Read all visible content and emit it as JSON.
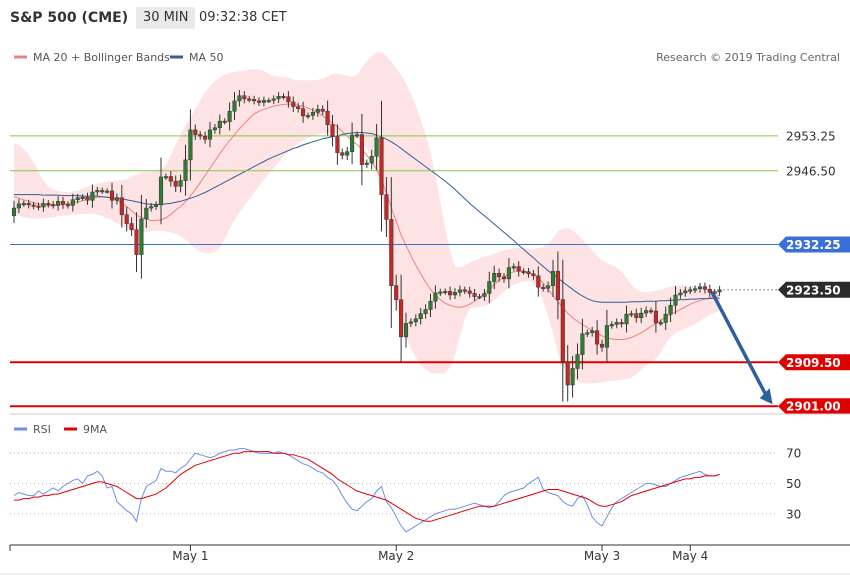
{
  "header": {
    "title": "S&P 500 (CME)",
    "interval": "30 MIN",
    "time": "09:32:38 CET"
  },
  "colors": {
    "bollinger_fill": "#fde3e3",
    "ma20": "#f08080",
    "ma50": "#2f5f9a",
    "support": "#e00000",
    "resistance": "#8bc34a",
    "current_line": "#3a6fd8",
    "candle_up": "#2e7d32",
    "candle_down": "#c62828",
    "arrow": "#2d5f9e",
    "rsi": "#6b8ee6",
    "rsi_ma": "#e00000"
  },
  "chart_data": [
    {
      "type": "candlestick",
      "legend": [
        {
          "name": "MA 20 + Bollinger Bands",
          "color": "#f08080"
        },
        {
          "name": "MA 50",
          "color": "#2f5f9a"
        }
      ],
      "credit": "Research © 2019 Trading Central",
      "ylim": [
        2899.5,
        2971
      ],
      "x_labels": [
        {
          "label": "May 1",
          "index": 36
        },
        {
          "label": "May 2",
          "index": 78
        },
        {
          "label": "May 3",
          "index": 120
        },
        {
          "label": "May 4",
          "index": 138
        }
      ],
      "levels": [
        {
          "value": 2953.25,
          "label": "2953.25",
          "kind": "resistance"
        },
        {
          "value": 2946.5,
          "label": "2946.50",
          "kind": "resistance"
        },
        {
          "value": 2932.25,
          "label": "2932.25",
          "kind": "current"
        },
        {
          "value": 2923.5,
          "label": "2923.50",
          "kind": "last"
        },
        {
          "value": 2909.5,
          "label": "2909.50",
          "kind": "support"
        },
        {
          "value": 2901.0,
          "label": "2901.00",
          "kind": "support"
        }
      ],
      "forecast_arrow": {
        "from": [
          142,
          2923.5
        ],
        "to": [
          154,
          2901.0
        ]
      },
      "close": [
        2939.3,
        2940.1,
        2940.2,
        2939.9,
        2939.7,
        2939.5,
        2940.2,
        2940.0,
        2939.8,
        2940.6,
        2940.0,
        2939.8,
        2940.9,
        2941.3,
        2941.4,
        2940.8,
        2942.4,
        2942.7,
        2942.6,
        2942.6,
        2940.8,
        2941.3,
        2938.0,
        2936.3,
        2935.1,
        2930.3,
        2937.2,
        2939.3,
        2939.6,
        2939.9,
        2945.3,
        2945.4,
        2944.5,
        2943.5,
        2944.6,
        2948.6,
        2954.4,
        2953.5,
        2953.2,
        2952.6,
        2954.4,
        2954.8,
        2956.1,
        2956.0,
        2958.0,
        2960.0,
        2961.0,
        2960.4,
        2960.3,
        2960.0,
        2959.7,
        2960.1,
        2960.1,
        2960.4,
        2960.9,
        2960.8,
        2959.8,
        2958.9,
        2958.5,
        2957.1,
        2957.2,
        2957.8,
        2958.4,
        2958.0,
        2955.4,
        2953.1,
        2950.0,
        2949.5,
        2950.2,
        2953.4,
        2953.5,
        2947.7,
        2948.0,
        2949.3,
        2952.9,
        2941.9,
        2937.1,
        2924.3,
        2921.6,
        2914.4,
        2917.0,
        2917.3,
        2917.9,
        2918.9,
        2919.7,
        2921.3,
        2922.9,
        2923.1,
        2923.2,
        2922.5,
        2923.0,
        2923.5,
        2923.3,
        2922.8,
        2922.2,
        2922.2,
        2922.8,
        2925.1,
        2926.7,
        2926.0,
        2925.6,
        2927.8,
        2928.0,
        2927.1,
        2927.0,
        2926.6,
        2926.2,
        2924.0,
        2923.8,
        2924.3,
        2927.1,
        2921.6,
        2909.6,
        2905.1,
        2908.3,
        2911.0,
        2915.0,
        2915.2,
        2915.6,
        2913.0,
        2912.4,
        2916.6,
        2916.8,
        2917.2,
        2916.9,
        2918.8,
        2918.9,
        2918.1,
        2919.0,
        2919.5,
        2919.4,
        2917.1,
        2917.2,
        2918.8,
        2920.5,
        2922.5,
        2922.9,
        2923.3,
        2923.5,
        2923.7,
        2924.1,
        2923.6,
        2923.0,
        2923.1,
        2923.5
      ],
      "open": [
        2937.8,
        2939.3,
        2940.1,
        2940.2,
        2939.9,
        2939.7,
        2939.5,
        2940.2,
        2940.0,
        2939.8,
        2940.6,
        2940.0,
        2939.8,
        2940.9,
        2941.3,
        2941.4,
        2940.8,
        2942.4,
        2942.7,
        2942.6,
        2942.6,
        2940.8,
        2941.3,
        2938.0,
        2936.3,
        2935.1,
        2930.3,
        2937.2,
        2939.3,
        2939.6,
        2939.9,
        2945.3,
        2945.4,
        2944.5,
        2943.5,
        2944.6,
        2948.6,
        2954.4,
        2953.5,
        2953.2,
        2952.6,
        2954.4,
        2954.8,
        2956.1,
        2956.0,
        2958.0,
        2960.0,
        2961.0,
        2960.4,
        2960.3,
        2960.0,
        2959.7,
        2960.1,
        2960.1,
        2960.4,
        2960.9,
        2960.8,
        2959.8,
        2958.9,
        2958.5,
        2957.1,
        2957.2,
        2957.8,
        2958.4,
        2958.0,
        2955.4,
        2953.1,
        2950.0,
        2949.5,
        2950.2,
        2953.4,
        2953.5,
        2947.7,
        2948.0,
        2949.3,
        2952.9,
        2941.9,
        2937.1,
        2924.3,
        2921.6,
        2914.4,
        2917.0,
        2917.3,
        2917.9,
        2918.9,
        2919.7,
        2921.3,
        2922.9,
        2923.1,
        2923.2,
        2922.5,
        2923.0,
        2923.5,
        2923.3,
        2922.8,
        2922.2,
        2922.2,
        2922.8,
        2925.1,
        2926.7,
        2926.0,
        2925.6,
        2927.8,
        2928.0,
        2927.1,
        2927.0,
        2926.6,
        2926.2,
        2924.0,
        2923.8,
        2924.3,
        2927.1,
        2921.6,
        2909.6,
        2905.1,
        2908.3,
        2911.0,
        2915.0,
        2915.2,
        2915.6,
        2913.0,
        2912.4,
        2916.6,
        2916.8,
        2917.2,
        2916.9,
        2918.8,
        2918.9,
        2918.1,
        2919.0,
        2919.5,
        2919.4,
        2917.1,
        2917.2,
        2918.8,
        2920.5,
        2922.5,
        2922.9,
        2923.3,
        2923.5,
        2923.7,
        2924.1,
        2923.6,
        2923.0,
        2923.1
      ],
      "ma20": [
        2941.5,
        2941.2,
        2940.9,
        2940.6,
        2940.3,
        2940.1,
        2939.9,
        2939.8,
        2939.8,
        2939.9,
        2940.0,
        2940.1,
        2940.3,
        2940.5,
        2940.7,
        2941.0,
        2941.2,
        2941.4,
        2941.5,
        2941.4,
        2941.1,
        2940.8,
        2940.3,
        2939.6,
        2938.8,
        2937.9,
        2937.5,
        2937.2,
        2936.9,
        2936.9,
        2937.0,
        2937.4,
        2938.1,
        2938.9,
        2939.6,
        2940.5,
        2941.6,
        2942.9,
        2944.2,
        2945.6,
        2947.0,
        2948.4,
        2949.8,
        2951.1,
        2952.3,
        2953.5,
        2954.6,
        2955.6,
        2956.6,
        2957.5,
        2958.0,
        2958.4,
        2958.7,
        2959.0,
        2959.2,
        2959.3,
        2959.4,
        2959.3,
        2959.2,
        2959.0,
        2958.6,
        2958.2,
        2957.7,
        2957.1,
        2956.4,
        2955.7,
        2955.0,
        2954.1,
        2953.2,
        2952.3,
        2951.6,
        2950.7,
        2949.5,
        2948.2,
        2946.8,
        2944.7,
        2942.2,
        2939.4,
        2936.7,
        2934.1,
        2932.1,
        2930.1,
        2928.3,
        2926.6,
        2925.0,
        2923.6,
        2922.5,
        2921.6,
        2920.9,
        2920.5,
        2920.2,
        2920.1,
        2920.3,
        2920.7,
        2921.3,
        2922.0,
        2922.8,
        2923.6,
        2924.5,
        2925.3,
        2926.0,
        2926.6,
        2927.0,
        2927.2,
        2927.1,
        2926.9,
        2926.4,
        2925.8,
        2924.8,
        2923.6,
        2922.4,
        2921.2,
        2920.0,
        2919.0,
        2918.1,
        2917.4,
        2916.8,
        2916.2,
        2915.6,
        2915.1,
        2914.6,
        2914.2,
        2914.0,
        2913.9,
        2913.9,
        2914.0,
        2914.3,
        2914.7,
        2915.2,
        2915.8,
        2916.4,
        2917.0,
        2917.6,
        2918.2,
        2918.7,
        2919.2,
        2919.7,
        2920.2,
        2920.7,
        2921.1,
        2921.4,
        2921.7,
        2922.0,
        2922.2,
        2922.4
      ],
      "bb_upper": [
        2951.8,
        2951.5,
        2950.7,
        2949.6,
        2948.1,
        2946.3,
        2944.6,
        2943.4,
        2942.9,
        2942.6,
        2942.4,
        2942.4,
        2942.5,
        2942.7,
        2943.1,
        2943.4,
        2943.7,
        2944.0,
        2944.2,
        2944.4,
        2944.5,
        2944.6,
        2944.7,
        2944.9,
        2945.3,
        2945.8,
        2946.2,
        2946.3,
        2946.3,
        2946.5,
        2946.9,
        2947.6,
        2949.4,
        2951.6,
        2953.5,
        2955.2,
        2956.9,
        2958.5,
        2960.1,
        2961.6,
        2962.8,
        2963.8,
        2964.6,
        2965.1,
        2965.4,
        2965.6,
        2965.7,
        2965.8,
        2966.0,
        2966.1,
        2966.1,
        2965.8,
        2965.2,
        2964.8,
        2964.7,
        2964.6,
        2964.5,
        2964.2,
        2964.0,
        2964.0,
        2964.0,
        2964.0,
        2964.1,
        2964.3,
        2964.7,
        2965.2,
        2965.3,
        2965.1,
        2964.9,
        2964.7,
        2965.0,
        2966.4,
        2967.7,
        2968.7,
        2969.4,
        2969.4,
        2968.7,
        2967.6,
        2966.3,
        2965.0,
        2963.4,
        2961.4,
        2959.0,
        2956.4,
        2953.5,
        2950.0,
        2945.6,
        2940.4,
        2935.5,
        2931.0,
        2928.0,
        2927.8,
        2928.2,
        2928.7,
        2929.2,
        2929.6,
        2929.9,
        2930.2,
        2930.5,
        2930.8,
        2931.1,
        2931.3,
        2931.5,
        2931.6,
        2931.6,
        2931.5,
        2931.4,
        2931.5,
        2931.8,
        2932.4,
        2933.5,
        2934.8,
        2935.4,
        2935.4,
        2934.9,
        2934.2,
        2933.3,
        2932.2,
        2931.1,
        2930.1,
        2929.2,
        2928.7,
        2928.3,
        2927.9,
        2927.0,
        2925.8,
        2924.5,
        2923.6,
        2923.1,
        2923.0,
        2923.1,
        2923.3,
        2923.5,
        2923.8,
        2924.1,
        2924.3,
        2924.4,
        2924.4,
        2924.3,
        2924.2,
        2924.1,
        2923.9,
        2923.7,
        2923.5,
        2923.3
      ],
      "bb_lower": [
        2938.4,
        2937.9,
        2937.5,
        2937.3,
        2937.2,
        2937.2,
        2937.3,
        2937.4,
        2937.5,
        2937.7,
        2937.8,
        2937.9,
        2938.0,
        2938.1,
        2938.2,
        2938.2,
        2938.2,
        2938.0,
        2937.7,
        2937.3,
        2936.9,
        2936.4,
        2935.9,
        2935.4,
        2935.0,
        2934.7,
        2934.6,
        2934.7,
        2934.8,
        2934.9,
        2934.9,
        2934.8,
        2934.6,
        2934.3,
        2933.9,
        2933.2,
        2932.3,
        2931.5,
        2930.9,
        2930.6,
        2930.5,
        2930.8,
        2931.7,
        2933.3,
        2935.2,
        2937.0,
        2938.5,
        2939.8,
        2941.0,
        2942.3,
        2943.6,
        2944.8,
        2945.9,
        2947.0,
        2948.1,
        2949.2,
        2950.2,
        2951.1,
        2951.8,
        2952.4,
        2952.9,
        2953.3,
        2953.5,
        2953.7,
        2953.8,
        2953.8,
        2953.6,
        2953.4,
        2953.1,
        2952.8,
        2952.6,
        2952.2,
        2950.9,
        2948.7,
        2945.8,
        2941.2,
        2934.6,
        2926.7,
        2920.4,
        2916.8,
        2914.4,
        2912.2,
        2910.4,
        2909.0,
        2908.1,
        2907.5,
        2907.3,
        2907.3,
        2907.5,
        2908.5,
        2910.9,
        2914.6,
        2917.9,
        2919.8,
        2920.2,
        2920.2,
        2920.3,
        2920.8,
        2921.5,
        2922.3,
        2923.2,
        2923.9,
        2924.5,
        2924.9,
        2925.1,
        2925.2,
        2924.8,
        2923.5,
        2921.3,
        2918.4,
        2914.9,
        2911.3,
        2908.7,
        2907.3,
        2906.4,
        2905.8,
        2905.5,
        2905.4,
        2905.4,
        2905.5,
        2905.6,
        2905.8,
        2905.9,
        2906.0,
        2906.1,
        2906.2,
        2906.5,
        2907.2,
        2908.1,
        2908.9,
        2909.5,
        2910.2,
        2911.4,
        2913.1,
        2914.3,
        2915.2,
        2915.7,
        2916.0,
        2916.4,
        2916.9,
        2917.5,
        2918.1,
        2918.6,
        2919.1,
        2919.5
      ],
      "ma50": [
        2941.9,
        2941.9,
        2941.9,
        2941.9,
        2941.9,
        2941.9,
        2941.8,
        2941.8,
        2941.8,
        2941.8,
        2941.7,
        2941.7,
        2941.7,
        2941.7,
        2941.6,
        2941.6,
        2941.6,
        2941.6,
        2941.5,
        2941.4,
        2941.3,
        2941.2,
        2941.1,
        2940.9,
        2940.7,
        2940.5,
        2940.3,
        2940.1,
        2940.0,
        2940.0,
        2940.0,
        2940.1,
        2940.2,
        2940.4,
        2940.6,
        2940.9,
        2941.2,
        2941.5,
        2941.9,
        2942.3,
        2942.8,
        2943.3,
        2943.8,
        2944.3,
        2944.8,
        2945.3,
        2945.8,
        2946.3,
        2946.8,
        2947.3,
        2947.8,
        2948.3,
        2948.8,
        2949.2,
        2949.6,
        2950.0,
        2950.4,
        2950.8,
        2951.1,
        2951.5,
        2951.8,
        2952.1,
        2952.4,
        2952.7,
        2952.9,
        2953.1,
        2953.3,
        2953.5,
        2953.7,
        2953.8,
        2953.9,
        2953.9,
        2953.8,
        2953.7,
        2953.4,
        2953.0,
        2952.6,
        2952.1,
        2951.5,
        2950.8,
        2950.1,
        2949.4,
        2948.7,
        2948.0,
        2947.3,
        2946.6,
        2945.9,
        2945.2,
        2944.5,
        2943.7,
        2942.9,
        2942.0,
        2941.1,
        2940.2,
        2939.4,
        2938.6,
        2937.8,
        2937.0,
        2936.2,
        2935.4,
        2934.6,
        2933.8,
        2933.0,
        2932.1,
        2931.3,
        2930.5,
        2929.7,
        2928.8,
        2928.0,
        2927.2,
        2926.5,
        2925.8,
        2925.0,
        2924.3,
        2923.6,
        2922.9,
        2922.3,
        2921.8,
        2921.4,
        2921.2,
        2921.1,
        2921.1,
        2921.1,
        2921.1,
        2921.1,
        2921.1,
        2921.2,
        2921.2,
        2921.2,
        2921.3,
        2921.3,
        2921.3,
        2921.4,
        2921.4,
        2921.5,
        2921.5,
        2921.6,
        2921.6,
        2921.7,
        2921.7,
        2921.8,
        2921.8,
        2921.8,
        2921.9,
        2921.9
      ]
    },
    {
      "type": "line",
      "legend": [
        {
          "name": "RSI",
          "color": "#6b8ee6"
        },
        {
          "name": "9MA",
          "color": "#e00000"
        }
      ],
      "ylim": [
        14,
        80
      ],
      "y_ticks": [
        30,
        50,
        70
      ],
      "rsi": [
        42,
        44,
        43,
        42,
        42,
        45,
        43,
        45,
        47,
        45,
        48,
        50,
        52,
        53,
        50,
        55,
        56,
        58,
        55,
        47,
        48,
        38,
        35,
        32,
        30,
        25,
        40,
        48,
        50,
        52,
        60,
        58,
        58,
        57,
        60,
        62,
        66,
        70,
        69,
        68,
        67,
        68,
        70,
        71,
        72,
        72,
        73,
        73,
        72,
        71,
        70,
        70,
        70,
        70,
        71,
        70,
        69,
        67,
        65,
        63,
        62,
        60,
        58,
        57,
        54,
        52,
        48,
        42,
        37,
        33,
        32,
        35,
        38,
        40,
        45,
        48,
        38,
        34,
        28,
        22,
        18,
        20,
        22,
        24,
        26,
        28,
        30,
        31,
        32,
        33,
        33,
        34,
        35,
        36,
        37,
        36,
        35,
        34,
        35,
        38,
        42,
        44,
        45,
        46,
        47,
        50,
        52,
        54,
        46,
        44,
        43,
        42,
        38,
        36,
        35,
        40,
        42,
        36,
        28,
        24,
        22,
        28,
        34,
        38,
        40,
        42,
        44,
        46,
        48,
        50,
        50,
        49,
        48,
        48,
        50,
        52,
        54,
        55,
        56,
        57,
        58,
        56,
        55,
        55,
        56
      ],
      "rsi_ma": [
        39,
        39,
        40,
        40,
        41,
        41,
        42,
        42,
        43,
        43,
        44,
        45,
        46,
        47,
        48,
        49,
        50,
        51,
        51,
        50,
        49,
        48,
        46,
        44,
        42,
        40,
        40,
        41,
        42,
        43,
        45,
        47,
        50,
        53,
        56,
        58,
        60,
        62,
        63,
        64,
        65,
        66,
        67,
        68,
        69,
        70,
        70,
        71,
        71,
        71,
        71,
        71,
        71,
        70,
        70,
        70,
        69,
        69,
        68,
        67,
        66,
        64,
        62,
        60,
        58,
        56,
        53,
        51,
        49,
        47,
        45,
        44,
        43,
        42,
        41,
        40,
        39,
        37,
        35,
        33,
        31,
        29,
        27,
        26,
        25,
        25,
        26,
        27,
        28,
        29,
        30,
        31,
        32,
        33,
        34,
        35,
        35,
        35,
        35,
        36,
        37,
        38,
        39,
        40,
        41,
        42,
        43,
        44,
        45,
        46,
        46,
        46,
        45,
        44,
        43,
        42,
        41,
        40,
        38,
        36,
        35,
        35,
        36,
        37,
        38,
        40,
        42,
        43,
        44,
        45,
        46,
        47,
        48,
        49,
        50,
        51,
        52,
        53,
        53,
        54,
        54,
        55,
        55,
        55,
        56
      ]
    }
  ]
}
